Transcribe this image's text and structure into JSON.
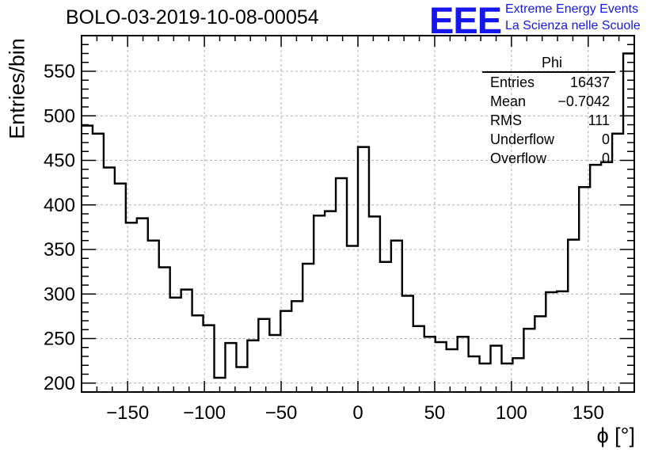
{
  "title": "BOLO-03-2019-10-08-00054",
  "logo": {
    "mark": "EEE",
    "line1": "Extreme Energy Events",
    "line2": "La Scienza nelle Scuole",
    "color": "#1515f0"
  },
  "stats_box": {
    "name": "Phi",
    "rows": [
      {
        "label": "Entries",
        "value": "16437"
      },
      {
        "label": "Mean",
        "value": "−0.7042"
      },
      {
        "label": "RMS",
        "value": "111"
      },
      {
        "label": "Underflow",
        "value": "0"
      },
      {
        "label": "Overflow",
        "value": "0"
      }
    ]
  },
  "chart_data": {
    "type": "histogram",
    "xlabel": "ϕ [°]",
    "ylabel": "Entries/bin",
    "xlim": [
      -180,
      180
    ],
    "ylim": [
      190,
      590
    ],
    "bin_width": 7.2,
    "x_ticks": [
      "−150",
      "−100",
      "−50",
      "0",
      "50",
      "100",
      "150"
    ],
    "x_tick_values": [
      -150,
      -100,
      -50,
      0,
      50,
      100,
      150
    ],
    "y_ticks": [
      "200",
      "250",
      "300",
      "350",
      "400",
      "450",
      "500",
      "550"
    ],
    "y_tick_values": [
      200,
      250,
      300,
      350,
      400,
      450,
      500,
      550
    ],
    "grid": true,
    "line_color": "#000000",
    "values": [
      489,
      480,
      442,
      424,
      380,
      385,
      360,
      330,
      296,
      305,
      276,
      265,
      206,
      245,
      218,
      248,
      272,
      254,
      281,
      292,
      334,
      388,
      393,
      430,
      354,
      465,
      387,
      336,
      360,
      298,
      264,
      252,
      246,
      238,
      252,
      230,
      222,
      242,
      222,
      228,
      261,
      275,
      302,
      303,
      361,
      420,
      445,
      448,
      480,
      570
    ]
  }
}
